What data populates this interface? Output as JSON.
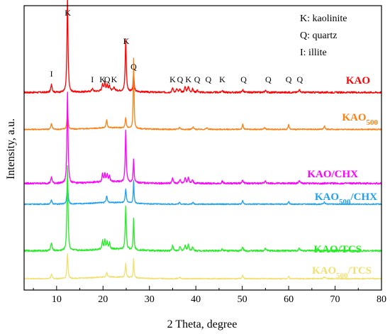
{
  "chart_data": {
    "type": "line",
    "xlabel": "2 Theta, degree",
    "ylabel": "Intensity, a.u.",
    "xlim": [
      3,
      80
    ],
    "xticks": [
      10,
      20,
      30,
      40,
      50,
      60,
      70,
      80
    ],
    "grid": false,
    "legend_placement": "top-right",
    "legend": [
      "K: kaolinite",
      "Q: quartz",
      "I: illite"
    ],
    "peak_labels": [
      {
        "text": "I",
        "x": 8.9
      },
      {
        "text": "K",
        "x": 12.4
      },
      {
        "text": "I",
        "x": 17.7
      },
      {
        "text": "K",
        "x": 19.9
      },
      {
        "text": "Q",
        "x": 20.9
      },
      {
        "text": "K",
        "x": 22.4
      },
      {
        "text": "K",
        "x": 25.0
      },
      {
        "text": "Q",
        "x": 26.6
      },
      {
        "text": "K",
        "x": 35.0
      },
      {
        "text": "Q",
        "x": 36.6
      },
      {
        "text": "K",
        "x": 38.4
      },
      {
        "text": "Q",
        "x": 40.3
      },
      {
        "text": "Q",
        "x": 42.7
      },
      {
        "text": "K",
        "x": 45.7
      },
      {
        "text": "Q",
        "x": 50.3
      },
      {
        "text": "Q",
        "x": 55.6
      },
      {
        "text": "Q",
        "x": 60.0
      },
      {
        "text": "Q",
        "x": 62.4
      }
    ],
    "series": [
      {
        "name": "KAO",
        "sub": "",
        "suffix": "",
        "color": "#ff0000",
        "baseline": 0.695,
        "noise": 0.006,
        "peaks": [
          [
            8.9,
            0.03,
            0.3
          ],
          [
            12.35,
            0.335,
            0.25
          ],
          [
            17.7,
            0.01,
            0.3
          ],
          [
            19.9,
            0.028,
            0.25
          ],
          [
            20.4,
            0.03,
            0.25
          ],
          [
            20.9,
            0.022,
            0.25
          ],
          [
            21.4,
            0.02,
            0.25
          ],
          [
            22.4,
            0.012,
            0.3
          ],
          [
            24.9,
            0.185,
            0.25
          ],
          [
            26.6,
            0.072,
            0.2
          ],
          [
            35.0,
            0.016,
            0.3
          ],
          [
            35.9,
            0.012,
            0.3
          ],
          [
            36.6,
            0.01,
            0.3
          ],
          [
            37.7,
            0.02,
            0.3
          ],
          [
            38.4,
            0.022,
            0.3
          ],
          [
            39.3,
            0.012,
            0.3
          ],
          [
            40.3,
            0.008,
            0.3
          ],
          [
            45.7,
            0.008,
            0.3
          ],
          [
            50.1,
            0.01,
            0.3
          ],
          [
            55.0,
            0.008,
            0.3
          ],
          [
            62.3,
            0.012,
            0.3
          ]
        ]
      },
      {
        "name": "KAO",
        "sub": "500",
        "suffix": "",
        "color": "#ff7f0e",
        "baseline": 0.565,
        "noise": 0.004,
        "peaks": [
          [
            8.9,
            0.02,
            0.3
          ],
          [
            12.35,
            0.072,
            0.25
          ],
          [
            20.8,
            0.03,
            0.25
          ],
          [
            24.9,
            0.036,
            0.25
          ],
          [
            26.6,
            0.26,
            0.18
          ],
          [
            36.5,
            0.008,
            0.3
          ],
          [
            39.4,
            0.008,
            0.3
          ],
          [
            42.4,
            0.006,
            0.3
          ],
          [
            50.1,
            0.018,
            0.25
          ],
          [
            54.8,
            0.006,
            0.3
          ],
          [
            60.0,
            0.016,
            0.25
          ],
          [
            67.7,
            0.012,
            0.3
          ]
        ]
      },
      {
        "name": "KAO/CHX",
        "sub": "",
        "suffix": "",
        "color": "#ff00ff",
        "baseline": 0.375,
        "noise": 0.006,
        "peaks": [
          [
            8.9,
            0.022,
            0.3
          ],
          [
            12.35,
            0.325,
            0.25
          ],
          [
            19.9,
            0.03,
            0.25
          ],
          [
            20.4,
            0.032,
            0.25
          ],
          [
            20.9,
            0.026,
            0.25
          ],
          [
            21.4,
            0.022,
            0.25
          ],
          [
            24.9,
            0.18,
            0.25
          ],
          [
            26.6,
            0.085,
            0.2
          ],
          [
            35.0,
            0.018,
            0.3
          ],
          [
            36.6,
            0.014,
            0.3
          ],
          [
            37.7,
            0.02,
            0.3
          ],
          [
            38.4,
            0.022,
            0.3
          ],
          [
            39.3,
            0.012,
            0.3
          ],
          [
            45.7,
            0.008,
            0.3
          ],
          [
            50.1,
            0.012,
            0.3
          ],
          [
            55.0,
            0.01,
            0.3
          ],
          [
            62.3,
            0.01,
            0.3
          ]
        ]
      },
      {
        "name": "KAO",
        "sub": "500",
        "suffix": "/CHX",
        "color": "#1ea0f0",
        "baseline": 0.302,
        "noise": 0.004,
        "peaks": [
          [
            8.9,
            0.014,
            0.3
          ],
          [
            12.35,
            0.08,
            0.25
          ],
          [
            20.8,
            0.024,
            0.25
          ],
          [
            24.9,
            0.05,
            0.25
          ],
          [
            26.6,
            0.082,
            0.18
          ],
          [
            36.5,
            0.006,
            0.3
          ],
          [
            39.4,
            0.006,
            0.3
          ],
          [
            50.1,
            0.012,
            0.25
          ],
          [
            60.0,
            0.01,
            0.25
          ],
          [
            67.7,
            0.008,
            0.3
          ]
        ]
      },
      {
        "name": "KAO/TCS",
        "sub": "",
        "suffix": "",
        "color": "#22ee22",
        "baseline": 0.138,
        "noise": 0.006,
        "peaks": [
          [
            8.9,
            0.03,
            0.3
          ],
          [
            12.35,
            0.3,
            0.25
          ],
          [
            19.9,
            0.03,
            0.25
          ],
          [
            20.4,
            0.032,
            0.25
          ],
          [
            20.9,
            0.026,
            0.25
          ],
          [
            21.4,
            0.022,
            0.25
          ],
          [
            24.9,
            0.152,
            0.25
          ],
          [
            26.6,
            0.117,
            0.2
          ],
          [
            35.0,
            0.018,
            0.3
          ],
          [
            36.6,
            0.014,
            0.3
          ],
          [
            37.7,
            0.02,
            0.3
          ],
          [
            38.4,
            0.022,
            0.3
          ],
          [
            39.3,
            0.012,
            0.3
          ],
          [
            45.7,
            0.008,
            0.3
          ],
          [
            50.1,
            0.012,
            0.3
          ],
          [
            55.0,
            0.01,
            0.3
          ],
          [
            62.3,
            0.01,
            0.3
          ]
        ]
      },
      {
        "name": "KAO",
        "sub": "500",
        "suffix": "/TCS",
        "color": "#f0e070",
        "baseline": 0.04,
        "noise": 0.004,
        "peaks": [
          [
            8.9,
            0.016,
            0.3
          ],
          [
            12.35,
            0.088,
            0.25
          ],
          [
            20.8,
            0.018,
            0.25
          ],
          [
            24.9,
            0.048,
            0.25
          ],
          [
            26.6,
            0.07,
            0.18
          ],
          [
            36.5,
            0.006,
            0.3
          ],
          [
            50.1,
            0.012,
            0.25
          ],
          [
            60.0,
            0.008,
            0.25
          ],
          [
            67.7,
            0.006,
            0.3
          ]
        ]
      }
    ]
  }
}
